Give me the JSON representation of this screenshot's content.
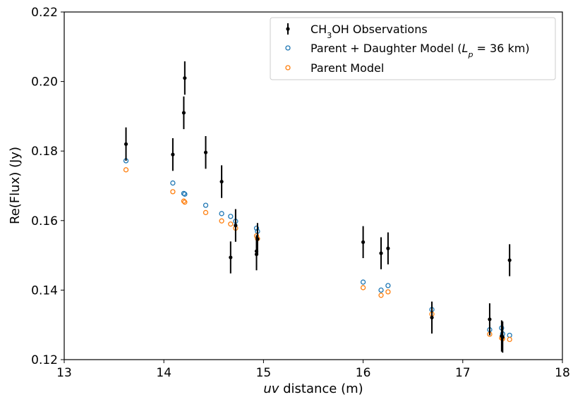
{
  "chart_data": {
    "type": "scatter",
    "xlabel_parts": [
      {
        "text": "uv",
        "italic": true
      },
      {
        "text": " distance (m)",
        "italic": false
      }
    ],
    "ylabel": "Re(Flux) (Jy)",
    "xlim": [
      13,
      18
    ],
    "ylim": [
      0.12,
      0.22
    ],
    "xticks": [
      "13",
      "14",
      "15",
      "16",
      "17",
      "18"
    ],
    "yticks": [
      "0.12",
      "0.14",
      "0.16",
      "0.18",
      "0.20",
      "0.22"
    ],
    "grid": false,
    "legend_position": "top-right",
    "legend": [
      {
        "key": "obs",
        "parts": [
          {
            "text": "CH",
            "style": "normal"
          },
          {
            "text": "3",
            "style": "sub"
          },
          {
            "text": "OH Observations",
            "style": "normal"
          }
        ]
      },
      {
        "key": "pd",
        "parts": [
          {
            "text": "Parent + Daughter Model (",
            "style": "normal"
          },
          {
            "text": "L",
            "style": "italic"
          },
          {
            "text": "p",
            "style": "italic-sub"
          },
          {
            "text": " = 36 km)",
            "style": "normal"
          }
        ]
      },
      {
        "key": "parent",
        "parts": [
          {
            "text": "Parent Model",
            "style": "normal"
          }
        ]
      }
    ],
    "series": [
      {
        "key": "obs",
        "color": "#000000",
        "marker": "dot-errorbar",
        "points": [
          {
            "x": 13.62,
            "y": 0.182,
            "err": 0.0048
          },
          {
            "x": 14.09,
            "y": 0.179,
            "err": 0.0047
          },
          {
            "x": 14.2,
            "y": 0.191,
            "err": 0.0047
          },
          {
            "x": 14.21,
            "y": 0.201,
            "err": 0.0048
          },
          {
            "x": 14.42,
            "y": 0.1796,
            "err": 0.0047
          },
          {
            "x": 14.58,
            "y": 0.1712,
            "err": 0.0047
          },
          {
            "x": 14.67,
            "y": 0.1494,
            "err": 0.0046
          },
          {
            "x": 14.72,
            "y": 0.1586,
            "err": 0.0047
          },
          {
            "x": 14.93,
            "y": 0.1503,
            "err": 0.0046
          },
          {
            "x": 14.93,
            "y": 0.1512,
            "err": 0.0046
          },
          {
            "x": 14.94,
            "y": 0.1547,
            "err": 0.0046
          },
          {
            "x": 16.0,
            "y": 0.1538,
            "err": 0.0046
          },
          {
            "x": 16.18,
            "y": 0.1506,
            "err": 0.0046
          },
          {
            "x": 16.25,
            "y": 0.152,
            "err": 0.0046
          },
          {
            "x": 16.69,
            "y": 0.1321,
            "err": 0.0046
          },
          {
            "x": 17.27,
            "y": 0.1316,
            "err": 0.0046
          },
          {
            "x": 17.39,
            "y": 0.1268,
            "err": 0.0045
          },
          {
            "x": 17.4,
            "y": 0.1265,
            "err": 0.0045
          },
          {
            "x": 17.47,
            "y": 0.1486,
            "err": 0.0046
          }
        ]
      },
      {
        "key": "pd",
        "color": "#1f77b4",
        "marker": "open-circle",
        "points": [
          {
            "x": 13.62,
            "y": 0.1772
          },
          {
            "x": 14.09,
            "y": 0.1708
          },
          {
            "x": 14.2,
            "y": 0.1678
          },
          {
            "x": 14.21,
            "y": 0.1676
          },
          {
            "x": 14.42,
            "y": 0.1644
          },
          {
            "x": 14.58,
            "y": 0.162
          },
          {
            "x": 14.67,
            "y": 0.1612
          },
          {
            "x": 14.72,
            "y": 0.1598
          },
          {
            "x": 14.93,
            "y": 0.1578
          },
          {
            "x": 14.94,
            "y": 0.1569
          },
          {
            "x": 16.0,
            "y": 0.1423
          },
          {
            "x": 16.18,
            "y": 0.14
          },
          {
            "x": 16.25,
            "y": 0.1413
          },
          {
            "x": 16.69,
            "y": 0.1344
          },
          {
            "x": 17.27,
            "y": 0.1286
          },
          {
            "x": 17.39,
            "y": 0.1291
          },
          {
            "x": 17.4,
            "y": 0.1274
          },
          {
            "x": 17.47,
            "y": 0.127
          }
        ]
      },
      {
        "key": "parent",
        "color": "#ff7f0e",
        "marker": "open-circle",
        "points": [
          {
            "x": 13.62,
            "y": 0.1746
          },
          {
            "x": 14.09,
            "y": 0.1683
          },
          {
            "x": 14.2,
            "y": 0.1656
          },
          {
            "x": 14.21,
            "y": 0.1653
          },
          {
            "x": 14.42,
            "y": 0.1623
          },
          {
            "x": 14.58,
            "y": 0.1599
          },
          {
            "x": 14.67,
            "y": 0.159
          },
          {
            "x": 14.72,
            "y": 0.1578
          },
          {
            "x": 14.93,
            "y": 0.1556
          },
          {
            "x": 14.94,
            "y": 0.1548
          },
          {
            "x": 16.0,
            "y": 0.1407
          },
          {
            "x": 16.18,
            "y": 0.1385
          },
          {
            "x": 16.25,
            "y": 0.1395
          },
          {
            "x": 16.69,
            "y": 0.1331
          },
          {
            "x": 17.27,
            "y": 0.1273
          },
          {
            "x": 17.39,
            "y": 0.1262
          },
          {
            "x": 17.4,
            "y": 0.126
          },
          {
            "x": 17.47,
            "y": 0.1258
          }
        ]
      }
    ]
  }
}
